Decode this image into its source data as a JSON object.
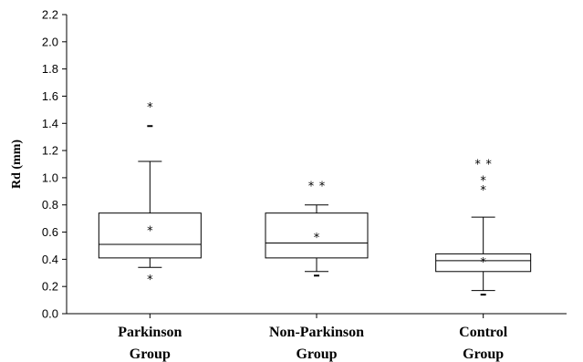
{
  "chart_data": {
    "type": "box",
    "ylabel": "Rd (mm)",
    "ylim": [
      0,
      2.2
    ],
    "yticks": [
      "0.0",
      "0.2",
      "0.4",
      "0.6",
      "0.8",
      "1.0",
      "1.2",
      "1.4",
      "1.6",
      "1.8",
      "2.0",
      "2.2"
    ],
    "grid": false,
    "groups": [
      {
        "label_lines": [
          "Parkinson",
          "Group"
        ],
        "whisker_low": 0.34,
        "q1": 0.41,
        "median": 0.51,
        "q3": 0.74,
        "whisker_high": 1.12,
        "mean": 0.62,
        "outliers": [
          {
            "y": 0.26,
            "marker": "*"
          },
          {
            "y": 1.38,
            "marker": "-"
          },
          {
            "y": 1.53,
            "marker": "*"
          }
        ]
      },
      {
        "label_lines": [
          "Non-Parkinson",
          "Group"
        ],
        "whisker_low": 0.31,
        "q1": 0.41,
        "median": 0.52,
        "q3": 0.74,
        "whisker_high": 0.8,
        "mean": 0.57,
        "outliers": [
          {
            "y": 0.28,
            "marker": "-"
          },
          {
            "y": 0.95,
            "marker": "**"
          }
        ]
      },
      {
        "label_lines": [
          "Control",
          "Group"
        ],
        "whisker_low": 0.17,
        "q1": 0.31,
        "median": 0.39,
        "q3": 0.44,
        "whisker_high": 0.71,
        "mean": 0.39,
        "outliers": [
          {
            "y": 0.14,
            "marker": "-"
          },
          {
            "y": 0.92,
            "marker": "*"
          },
          {
            "y": 0.99,
            "marker": "*"
          },
          {
            "y": 1.11,
            "marker": "**"
          }
        ]
      }
    ]
  }
}
